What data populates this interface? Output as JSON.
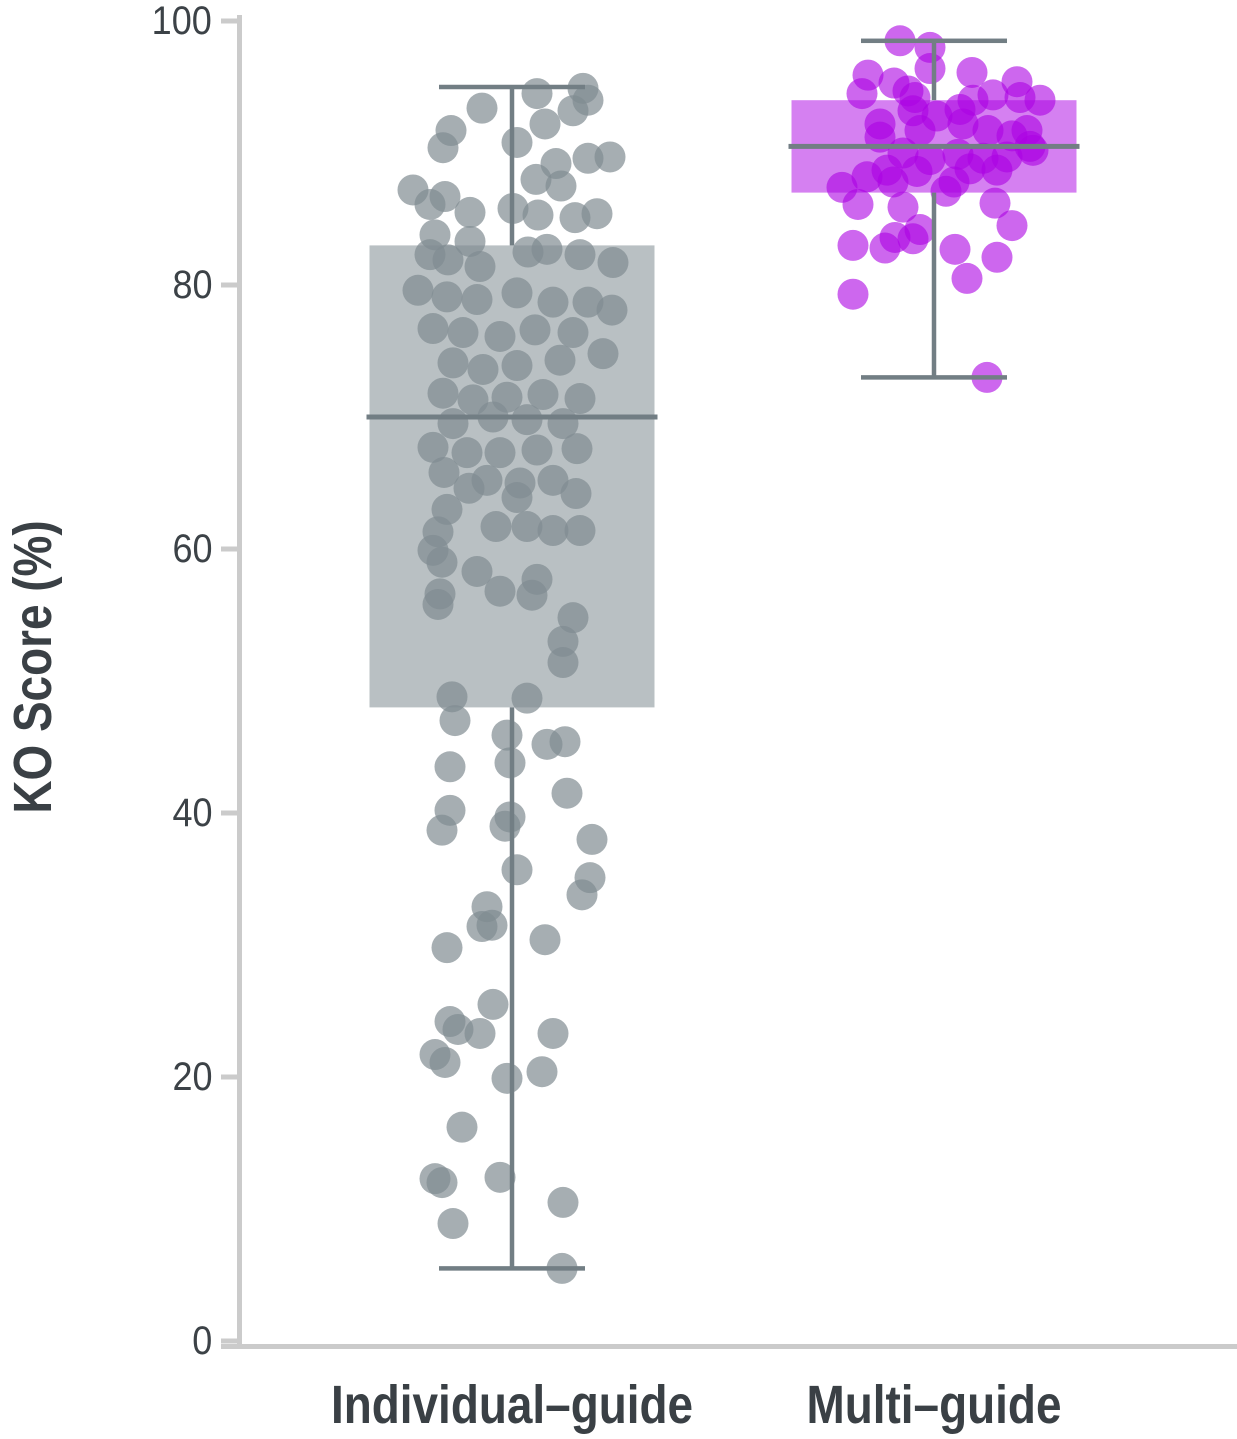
{
  "figure": {
    "background": "#ffffff"
  },
  "axis": {
    "line_color": "#cbcbcb",
    "tick_color": "#cbcbcb",
    "tick_label_color": "#3c4247",
    "title_color": "#3a4045"
  },
  "chart_data": {
    "type": "boxplot_jitter",
    "title": "",
    "xlabel": "",
    "ylabel": "KO Score (%)",
    "ylim": [
      0,
      100
    ],
    "yticks": [
      0,
      20,
      40,
      60,
      80,
      100
    ],
    "ytick_labels": [
      "0",
      "20",
      "40",
      "60",
      "80",
      "100"
    ],
    "grid": false,
    "legend": false,
    "whisker_color": "#727e84",
    "categories": [
      "Individual–guide",
      "Multi–guide"
    ],
    "groups": [
      {
        "label": "Individual–guide",
        "box_stats": {
          "min": 5.5,
          "q1": 48,
          "median": 70,
          "q3": 83,
          "max": 95
        },
        "box_fill": "#808c91",
        "box_fill_alpha": 0.55,
        "point_color": "#808c91",
        "point_alpha": 0.7,
        "points": [
          [
            -30,
            93.4
          ],
          [
            25,
            94.5
          ],
          [
            71,
            94.9
          ],
          [
            76,
            94.0
          ],
          [
            61,
            93.2
          ],
          [
            33,
            92.2
          ],
          [
            -61,
            91.7
          ],
          [
            -69,
            90.4
          ],
          [
            5,
            90.8
          ],
          [
            44,
            89.2
          ],
          [
            76,
            89.6
          ],
          [
            98,
            89.7
          ],
          [
            24,
            88.0
          ],
          [
            49,
            87.5
          ],
          [
            -99,
            87.2
          ],
          [
            -67,
            86.7
          ],
          [
            -82,
            86.1
          ],
          [
            -42,
            85.5
          ],
          [
            1,
            85.8
          ],
          [
            26,
            85.3
          ],
          [
            63,
            85.1
          ],
          [
            85,
            85.4
          ],
          [
            -77,
            83.8
          ],
          [
            -42,
            83.3
          ],
          [
            -82,
            82.3
          ],
          [
            -64,
            81.9
          ],
          [
            -32,
            81.4
          ],
          [
            16,
            82.5
          ],
          [
            35,
            82.7
          ],
          [
            68,
            82.3
          ],
          [
            101,
            81.7
          ],
          [
            -94,
            79.6
          ],
          [
            -65,
            79.1
          ],
          [
            -35,
            78.9
          ],
          [
            5,
            79.4
          ],
          [
            41,
            78.7
          ],
          [
            76,
            78.7
          ],
          [
            100,
            78.1
          ],
          [
            -79,
            76.7
          ],
          [
            -49,
            76.4
          ],
          [
            -12,
            76.1
          ],
          [
            23,
            76.6
          ],
          [
            61,
            76.4
          ],
          [
            91,
            74.8
          ],
          [
            -59,
            74.1
          ],
          [
            -29,
            73.6
          ],
          [
            5,
            73.9
          ],
          [
            48,
            74.3
          ],
          [
            -69,
            71.8
          ],
          [
            -39,
            71.3
          ],
          [
            -5,
            71.5
          ],
          [
            31,
            71.7
          ],
          [
            68,
            71.4
          ],
          [
            -19,
            70.0
          ],
          [
            -59,
            69.5
          ],
          [
            15,
            69.8
          ],
          [
            51,
            69.5
          ],
          [
            -79,
            67.7
          ],
          [
            -45,
            67.3
          ],
          [
            -12,
            67.3
          ],
          [
            25,
            67.5
          ],
          [
            65,
            67.6
          ],
          [
            -68,
            65.8
          ],
          [
            -25,
            65.2
          ],
          [
            8,
            65.0
          ],
          [
            41,
            65.2
          ],
          [
            -43,
            64.6
          ],
          [
            64,
            64.2
          ],
          [
            5,
            63.9
          ],
          [
            -65,
            63.0
          ],
          [
            -16,
            61.7
          ],
          [
            15,
            61.7
          ],
          [
            41,
            61.4
          ],
          [
            68,
            61.4
          ],
          [
            -74,
            61.3
          ],
          [
            -79,
            59.9
          ],
          [
            -70,
            59.0
          ],
          [
            -35,
            58.3
          ],
          [
            25,
            57.7
          ],
          [
            -12,
            56.8
          ],
          [
            20,
            56.5
          ],
          [
            -72,
            56.6
          ],
          [
            -74,
            55.8
          ],
          [
            61,
            54.8
          ],
          [
            51,
            53.0
          ],
          [
            51,
            51.4
          ],
          [
            -60,
            48.8
          ],
          [
            15,
            48.7
          ],
          [
            -57,
            47.0
          ],
          [
            -5,
            45.9
          ],
          [
            35,
            45.2
          ],
          [
            53,
            45.4
          ],
          [
            -2,
            43.8
          ],
          [
            -62,
            43.5
          ],
          [
            55,
            41.5
          ],
          [
            -62,
            40.2
          ],
          [
            -70,
            38.7
          ],
          [
            -2,
            39.7
          ],
          [
            -7,
            39.0
          ],
          [
            80,
            38.0
          ],
          [
            78,
            35.1
          ],
          [
            70,
            33.8
          ],
          [
            5,
            35.7
          ],
          [
            -25,
            32.9
          ],
          [
            -20,
            31.5
          ],
          [
            -30,
            31.4
          ],
          [
            33,
            30.4
          ],
          [
            -65,
            29.8
          ],
          [
            -19,
            25.5
          ],
          [
            -62,
            24.2
          ],
          [
            -54,
            23.6
          ],
          [
            -32,
            23.3
          ],
          [
            41,
            23.3
          ],
          [
            -77,
            21.7
          ],
          [
            -67,
            21.1
          ],
          [
            30,
            20.4
          ],
          [
            -5,
            19.9
          ],
          [
            -50,
            16.2
          ],
          [
            -77,
            12.3
          ],
          [
            -70,
            12.0
          ],
          [
            -12,
            12.4
          ],
          [
            51,
            10.5
          ],
          [
            -59,
            8.9
          ],
          [
            50,
            5.5
          ]
        ]
      },
      {
        "label": "Multi–guide",
        "box_stats": {
          "min": 73,
          "q1": 87,
          "median": 90.5,
          "q3": 94,
          "max": 98.5
        },
        "box_fill": "#ac02e3",
        "box_fill_alpha": 0.5,
        "point_color": "#ac02e3",
        "point_alpha": 0.6,
        "points": [
          [
            -34,
            98.5
          ],
          [
            -4,
            98.0
          ],
          [
            -66,
            95.9
          ],
          [
            -72,
            94.5
          ],
          [
            -40,
            95.3
          ],
          [
            -26,
            94.7
          ],
          [
            -19,
            94.2
          ],
          [
            -4,
            96.4
          ],
          [
            38,
            96.1
          ],
          [
            39,
            94.0
          ],
          [
            59,
            94.4
          ],
          [
            83,
            95.4
          ],
          [
            86,
            94.2
          ],
          [
            106,
            94.0
          ],
          [
            -54,
            92.2
          ],
          [
            -21,
            93.2
          ],
          [
            3,
            92.8
          ],
          [
            26,
            93.3
          ],
          [
            -14,
            91.7
          ],
          [
            29,
            92.2
          ],
          [
            54,
            91.7
          ],
          [
            78,
            91.3
          ],
          [
            93,
            91.7
          ],
          [
            96,
            90.5
          ],
          [
            -54,
            91.2
          ],
          [
            -31,
            90.0
          ],
          [
            -4,
            89.5
          ],
          [
            24,
            89.9
          ],
          [
            49,
            89.6
          ],
          [
            73,
            89.7
          ],
          [
            99,
            90.2
          ],
          [
            -47,
            88.7
          ],
          [
            -17,
            88.6
          ],
          [
            36,
            88.8
          ],
          [
            63,
            88.7
          ],
          [
            -92,
            87.4
          ],
          [
            -67,
            88.2
          ],
          [
            -41,
            87.8
          ],
          [
            12,
            87.1
          ],
          [
            20,
            87.8
          ],
          [
            -14,
            84.2
          ],
          [
            -76,
            86.1
          ],
          [
            -31,
            85.9
          ],
          [
            61,
            86.2
          ],
          [
            78,
            84.5
          ],
          [
            -81,
            83.0
          ],
          [
            -49,
            82.8
          ],
          [
            -39,
            83.6
          ],
          [
            -21,
            83.5
          ],
          [
            21,
            82.7
          ],
          [
            63,
            82.1
          ],
          [
            -81,
            79.3
          ],
          [
            33,
            80.5
          ],
          [
            53,
            73.0
          ]
        ]
      }
    ]
  }
}
